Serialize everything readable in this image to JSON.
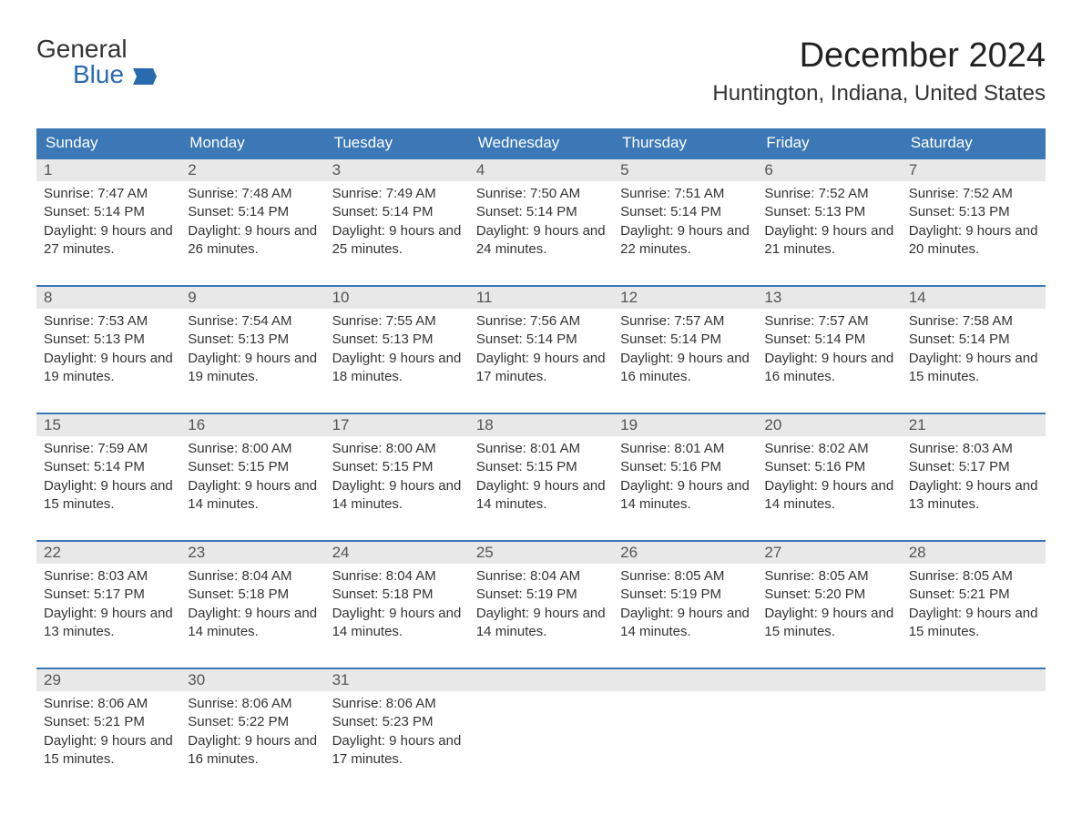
{
  "logo": {
    "line1": "General",
    "line2": "Blue",
    "color_dark": "#333333",
    "color_blue": "#2a6bb0"
  },
  "header": {
    "month_title": "December 2024",
    "location": "Huntington, Indiana, United States"
  },
  "calendar": {
    "header_bg": "#3b78b5",
    "header_text_color": "#ffffff",
    "week_border_color": "#3b78b5",
    "day_number_bg": "#e8e8e8",
    "background": "#ffffff",
    "text_color": "#333333",
    "days_of_week": [
      "Sunday",
      "Monday",
      "Tuesday",
      "Wednesday",
      "Thursday",
      "Friday",
      "Saturday"
    ],
    "weeks": [
      [
        {
          "n": "1",
          "sunrise": "7:47 AM",
          "sunset": "5:14 PM",
          "daylight": "9 hours and 27 minutes."
        },
        {
          "n": "2",
          "sunrise": "7:48 AM",
          "sunset": "5:14 PM",
          "daylight": "9 hours and 26 minutes."
        },
        {
          "n": "3",
          "sunrise": "7:49 AM",
          "sunset": "5:14 PM",
          "daylight": "9 hours and 25 minutes."
        },
        {
          "n": "4",
          "sunrise": "7:50 AM",
          "sunset": "5:14 PM",
          "daylight": "9 hours and 24 minutes."
        },
        {
          "n": "5",
          "sunrise": "7:51 AM",
          "sunset": "5:14 PM",
          "daylight": "9 hours and 22 minutes."
        },
        {
          "n": "6",
          "sunrise": "7:52 AM",
          "sunset": "5:13 PM",
          "daylight": "9 hours and 21 minutes."
        },
        {
          "n": "7",
          "sunrise": "7:52 AM",
          "sunset": "5:13 PM",
          "daylight": "9 hours and 20 minutes."
        }
      ],
      [
        {
          "n": "8",
          "sunrise": "7:53 AM",
          "sunset": "5:13 PM",
          "daylight": "9 hours and 19 minutes."
        },
        {
          "n": "9",
          "sunrise": "7:54 AM",
          "sunset": "5:13 PM",
          "daylight": "9 hours and 19 minutes."
        },
        {
          "n": "10",
          "sunrise": "7:55 AM",
          "sunset": "5:13 PM",
          "daylight": "9 hours and 18 minutes."
        },
        {
          "n": "11",
          "sunrise": "7:56 AM",
          "sunset": "5:14 PM",
          "daylight": "9 hours and 17 minutes."
        },
        {
          "n": "12",
          "sunrise": "7:57 AM",
          "sunset": "5:14 PM",
          "daylight": "9 hours and 16 minutes."
        },
        {
          "n": "13",
          "sunrise": "7:57 AM",
          "sunset": "5:14 PM",
          "daylight": "9 hours and 16 minutes."
        },
        {
          "n": "14",
          "sunrise": "7:58 AM",
          "sunset": "5:14 PM",
          "daylight": "9 hours and 15 minutes."
        }
      ],
      [
        {
          "n": "15",
          "sunrise": "7:59 AM",
          "sunset": "5:14 PM",
          "daylight": "9 hours and 15 minutes."
        },
        {
          "n": "16",
          "sunrise": "8:00 AM",
          "sunset": "5:15 PM",
          "daylight": "9 hours and 14 minutes."
        },
        {
          "n": "17",
          "sunrise": "8:00 AM",
          "sunset": "5:15 PM",
          "daylight": "9 hours and 14 minutes."
        },
        {
          "n": "18",
          "sunrise": "8:01 AM",
          "sunset": "5:15 PM",
          "daylight": "9 hours and 14 minutes."
        },
        {
          "n": "19",
          "sunrise": "8:01 AM",
          "sunset": "5:16 PM",
          "daylight": "9 hours and 14 minutes."
        },
        {
          "n": "20",
          "sunrise": "8:02 AM",
          "sunset": "5:16 PM",
          "daylight": "9 hours and 14 minutes."
        },
        {
          "n": "21",
          "sunrise": "8:03 AM",
          "sunset": "5:17 PM",
          "daylight": "9 hours and 13 minutes."
        }
      ],
      [
        {
          "n": "22",
          "sunrise": "8:03 AM",
          "sunset": "5:17 PM",
          "daylight": "9 hours and 13 minutes."
        },
        {
          "n": "23",
          "sunrise": "8:04 AM",
          "sunset": "5:18 PM",
          "daylight": "9 hours and 14 minutes."
        },
        {
          "n": "24",
          "sunrise": "8:04 AM",
          "sunset": "5:18 PM",
          "daylight": "9 hours and 14 minutes."
        },
        {
          "n": "25",
          "sunrise": "8:04 AM",
          "sunset": "5:19 PM",
          "daylight": "9 hours and 14 minutes."
        },
        {
          "n": "26",
          "sunrise": "8:05 AM",
          "sunset": "5:19 PM",
          "daylight": "9 hours and 14 minutes."
        },
        {
          "n": "27",
          "sunrise": "8:05 AM",
          "sunset": "5:20 PM",
          "daylight": "9 hours and 15 minutes."
        },
        {
          "n": "28",
          "sunrise": "8:05 AM",
          "sunset": "5:21 PM",
          "daylight": "9 hours and 15 minutes."
        }
      ],
      [
        {
          "n": "29",
          "sunrise": "8:06 AM",
          "sunset": "5:21 PM",
          "daylight": "9 hours and 15 minutes."
        },
        {
          "n": "30",
          "sunrise": "8:06 AM",
          "sunset": "5:22 PM",
          "daylight": "9 hours and 16 minutes."
        },
        {
          "n": "31",
          "sunrise": "8:06 AM",
          "sunset": "5:23 PM",
          "daylight": "9 hours and 17 minutes."
        },
        null,
        null,
        null,
        null
      ]
    ],
    "labels": {
      "sunrise": "Sunrise:",
      "sunset": "Sunset:",
      "daylight": "Daylight:"
    }
  }
}
